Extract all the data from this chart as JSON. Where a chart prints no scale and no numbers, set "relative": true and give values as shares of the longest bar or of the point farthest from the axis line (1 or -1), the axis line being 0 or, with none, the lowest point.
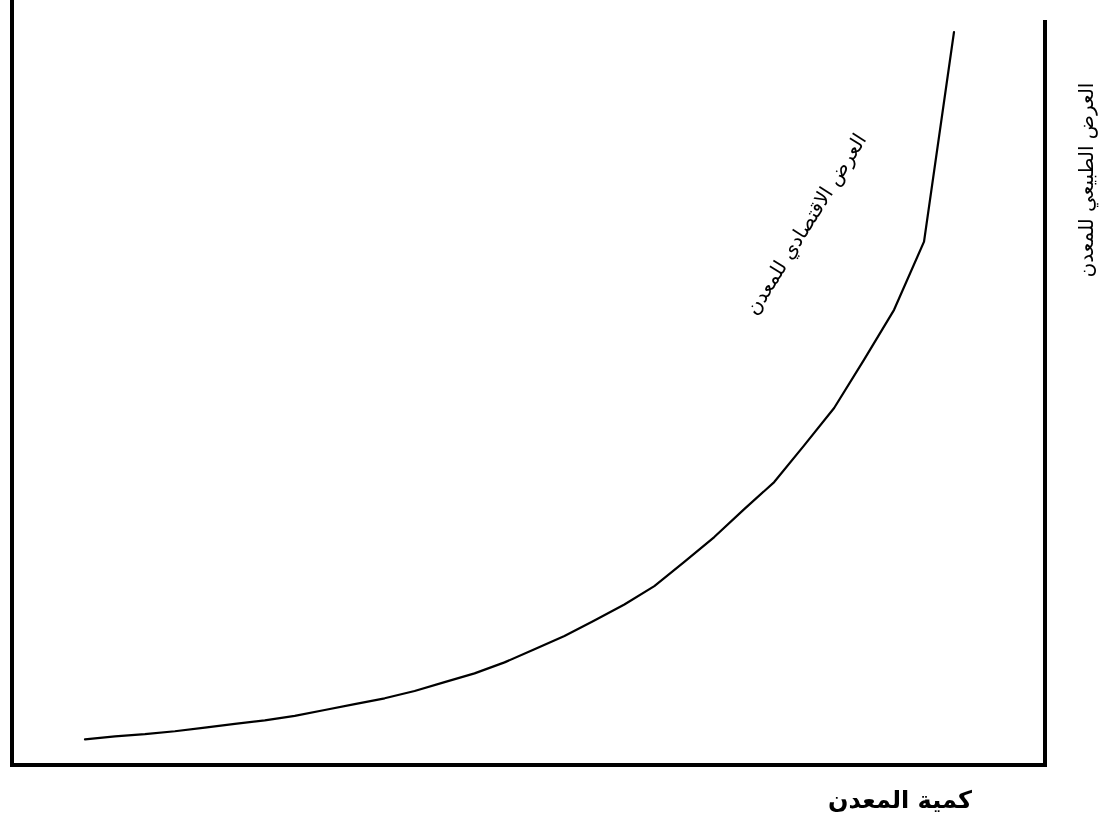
{
  "chart_data": {
    "type": "line",
    "xlabel": "كمية المعدن",
    "relative": true,
    "categories": [
      null,
      null,
      null,
      null,
      null,
      null,
      null,
      null,
      null,
      null,
      null,
      null,
      null,
      null,
      null,
      null,
      null,
      null,
      null,
      null,
      null,
      null,
      null,
      null,
      null,
      null,
      null,
      null,
      null,
      null
    ],
    "series": [
      {
        "name": "العرض الاقتصادي للمعدن",
        "color": "#000000",
        "values": [
          0.035,
          0.039,
          0.042,
          0.046,
          0.051,
          0.056,
          0.061,
          0.067,
          0.075,
          0.083,
          0.091,
          0.101,
          0.113,
          0.125,
          0.14,
          0.158,
          0.176,
          0.197,
          0.219,
          0.244,
          0.277,
          0.311,
          0.349,
          0.386,
          0.436,
          0.487,
          0.553,
          0.621,
          0.714,
          1
        ]
      }
    ],
    "annotations": [
      "العرض الطبيعي للمعدن"
    ]
  }
}
